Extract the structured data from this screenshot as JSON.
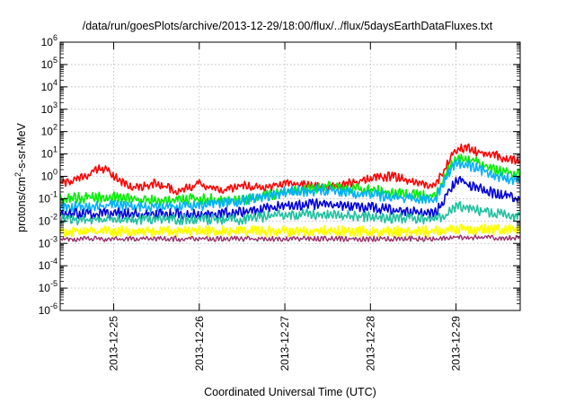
{
  "chart_data": {
    "type": "line",
    "title": "/data/run/goesPlots/archive/2013-12-29/18:00/flux/../flux/5daysEarthDataFluxes.txt",
    "xlabel": "Coordinated Universal Time (UTC)",
    "ylabel_parts": [
      "protons/cm",
      "2",
      "-s-sr-MeV"
    ],
    "x_range": [
      "2013-12-24T09:00",
      "2013-12-29T18:00"
    ],
    "x_ticks": [
      "2013-12-25",
      "2013-12-26",
      "2013-12-27",
      "2013-12-28",
      "2013-12-29"
    ],
    "y_scale": "log",
    "ylim": [
      1e-06,
      1000000.0
    ],
    "y_ticks": [
      {
        "base": "10",
        "exp": "6"
      },
      {
        "base": "10",
        "exp": "5"
      },
      {
        "base": "10",
        "exp": "4"
      },
      {
        "base": "10",
        "exp": "3"
      },
      {
        "base": "10",
        "exp": "2"
      },
      {
        "base": "10",
        "exp": "1"
      },
      {
        "base": "10",
        "exp": "0"
      },
      {
        "base": "10",
        "exp": "-1"
      },
      {
        "base": "10",
        "exp": "-2"
      },
      {
        "base": "10",
        "exp": "-3"
      },
      {
        "base": "10",
        "exp": "-4"
      },
      {
        "base": "10",
        "exp": "-5"
      },
      {
        "base": "10",
        "exp": "-6"
      }
    ],
    "grid": true,
    "legend": "none",
    "series": [
      {
        "color": "#ff0000",
        "width": 1.6,
        "points": [
          [
            "2013-12-24T09:00",
            0.5
          ],
          [
            "2013-12-24T13:00",
            0.6
          ],
          [
            "2013-12-24T17:00",
            1.2
          ],
          [
            "2013-12-24T20:00",
            2.5
          ],
          [
            "2013-12-24T22:00",
            2.0
          ],
          [
            "2013-12-25T00:00",
            1.0
          ],
          [
            "2013-12-25T03:00",
            0.5
          ],
          [
            "2013-12-25T06:00",
            0.3
          ],
          [
            "2013-12-25T12:00",
            0.5
          ],
          [
            "2013-12-25T18:00",
            0.2
          ],
          [
            "2013-12-26T00:00",
            0.5
          ],
          [
            "2013-12-26T06:00",
            0.2
          ],
          [
            "2013-12-26T12:00",
            0.4
          ],
          [
            "2013-12-26T18:00",
            0.3
          ],
          [
            "2013-12-27T00:00",
            0.5
          ],
          [
            "2013-12-27T06:00",
            0.4
          ],
          [
            "2013-12-27T12:00",
            0.3
          ],
          [
            "2013-12-27T18:00",
            0.5
          ],
          [
            "2013-12-28T00:00",
            0.8
          ],
          [
            "2013-12-28T06:00",
            1.0
          ],
          [
            "2013-12-28T12:00",
            0.6
          ],
          [
            "2013-12-28T18:00",
            0.4
          ],
          [
            "2013-12-28T20:00",
            1.2
          ],
          [
            "2013-12-28T22:00",
            5.0
          ],
          [
            "2013-12-29T00:00",
            15
          ],
          [
            "2013-12-29T03:00",
            20
          ],
          [
            "2013-12-29T06:00",
            12
          ],
          [
            "2013-12-29T10:00",
            10
          ],
          [
            "2013-12-29T14:00",
            6
          ],
          [
            "2013-12-29T18:00",
            5
          ]
        ]
      },
      {
        "color": "#00ee00",
        "width": 1.6,
        "points": [
          [
            "2013-12-24T09:00",
            0.1
          ],
          [
            "2013-12-25T00:00",
            0.12
          ],
          [
            "2013-12-25T12:00",
            0.08
          ],
          [
            "2013-12-26T00:00",
            0.1
          ],
          [
            "2013-12-26T12:00",
            0.08
          ],
          [
            "2013-12-27T00:00",
            0.2
          ],
          [
            "2013-12-27T12:00",
            0.35
          ],
          [
            "2013-12-28T00:00",
            0.25
          ],
          [
            "2013-12-28T12:00",
            0.15
          ],
          [
            "2013-12-28T18:00",
            0.12
          ],
          [
            "2013-12-28T22:00",
            2.0
          ],
          [
            "2013-12-29T00:00",
            6
          ],
          [
            "2013-12-29T04:00",
            6
          ],
          [
            "2013-12-29T08:00",
            3
          ],
          [
            "2013-12-29T12:00",
            1.8
          ],
          [
            "2013-12-29T18:00",
            1.3
          ]
        ]
      },
      {
        "color": "#00b0ff",
        "width": 1.6,
        "points": [
          [
            "2013-12-24T09:00",
            0.04
          ],
          [
            "2013-12-25T00:00",
            0.05
          ],
          [
            "2013-12-25T12:00",
            0.04
          ],
          [
            "2013-12-26T00:00",
            0.05
          ],
          [
            "2013-12-26T12:00",
            0.08
          ],
          [
            "2013-12-27T00:00",
            0.2
          ],
          [
            "2013-12-27T12:00",
            0.25
          ],
          [
            "2013-12-28T00:00",
            0.15
          ],
          [
            "2013-12-28T12:00",
            0.1
          ],
          [
            "2013-12-28T18:00",
            0.08
          ],
          [
            "2013-12-28T22:00",
            1.5
          ],
          [
            "2013-12-29T00:00",
            4
          ],
          [
            "2013-12-29T04:00",
            3
          ],
          [
            "2013-12-29T10:00",
            1.2
          ],
          [
            "2013-12-29T18:00",
            0.6
          ]
        ]
      },
      {
        "color": "#0000dd",
        "width": 1.6,
        "points": [
          [
            "2013-12-24T09:00",
            0.02
          ],
          [
            "2013-12-25T00:00",
            0.022
          ],
          [
            "2013-12-25T12:00",
            0.02
          ],
          [
            "2013-12-26T00:00",
            0.02
          ],
          [
            "2013-12-26T12:00",
            0.025
          ],
          [
            "2013-12-27T00:00",
            0.05
          ],
          [
            "2013-12-27T12:00",
            0.06
          ],
          [
            "2013-12-28T00:00",
            0.04
          ],
          [
            "2013-12-28T12:00",
            0.025
          ],
          [
            "2013-12-28T18:00",
            0.02
          ],
          [
            "2013-12-28T22:00",
            0.2
          ],
          [
            "2013-12-29T00:00",
            0.7
          ],
          [
            "2013-12-29T06:00",
            0.3
          ],
          [
            "2013-12-29T12:00",
            0.15
          ],
          [
            "2013-12-29T18:00",
            0.1
          ]
        ]
      },
      {
        "color": "#20c0a0",
        "width": 1.6,
        "points": [
          [
            "2013-12-24T09:00",
            0.012
          ],
          [
            "2013-12-25T00:00",
            0.012
          ],
          [
            "2013-12-26T00:00",
            0.012
          ],
          [
            "2013-12-26T12:00",
            0.012
          ],
          [
            "2013-12-27T00:00",
            0.02
          ],
          [
            "2013-12-27T12:00",
            0.02
          ],
          [
            "2013-12-28T00:00",
            0.015
          ],
          [
            "2013-12-28T12:00",
            0.013
          ],
          [
            "2013-12-28T20:00",
            0.013
          ],
          [
            "2013-12-29T00:00",
            0.05
          ],
          [
            "2013-12-29T06:00",
            0.03
          ],
          [
            "2013-12-29T12:00",
            0.02
          ],
          [
            "2013-12-29T18:00",
            0.015
          ]
        ]
      },
      {
        "color": "#ffff00",
        "width": 2.0,
        "points": [
          [
            "2013-12-24T09:00",
            0.0035
          ],
          [
            "2013-12-26T00:00",
            0.0035
          ],
          [
            "2013-12-28T00:00",
            0.0035
          ],
          [
            "2013-12-28T20:00",
            0.0035
          ],
          [
            "2013-12-29T00:00",
            0.0045
          ],
          [
            "2013-12-29T18:00",
            0.004
          ]
        ]
      },
      {
        "color": "#9a2f6a",
        "width": 1.4,
        "points": [
          [
            "2013-12-24T09:00",
            0.0016
          ],
          [
            "2013-12-26T00:00",
            0.0016
          ],
          [
            "2013-12-28T00:00",
            0.0016
          ],
          [
            "2013-12-28T20:00",
            0.0016
          ],
          [
            "2013-12-29T00:00",
            0.0019
          ],
          [
            "2013-12-29T18:00",
            0.0017
          ]
        ]
      }
    ]
  }
}
